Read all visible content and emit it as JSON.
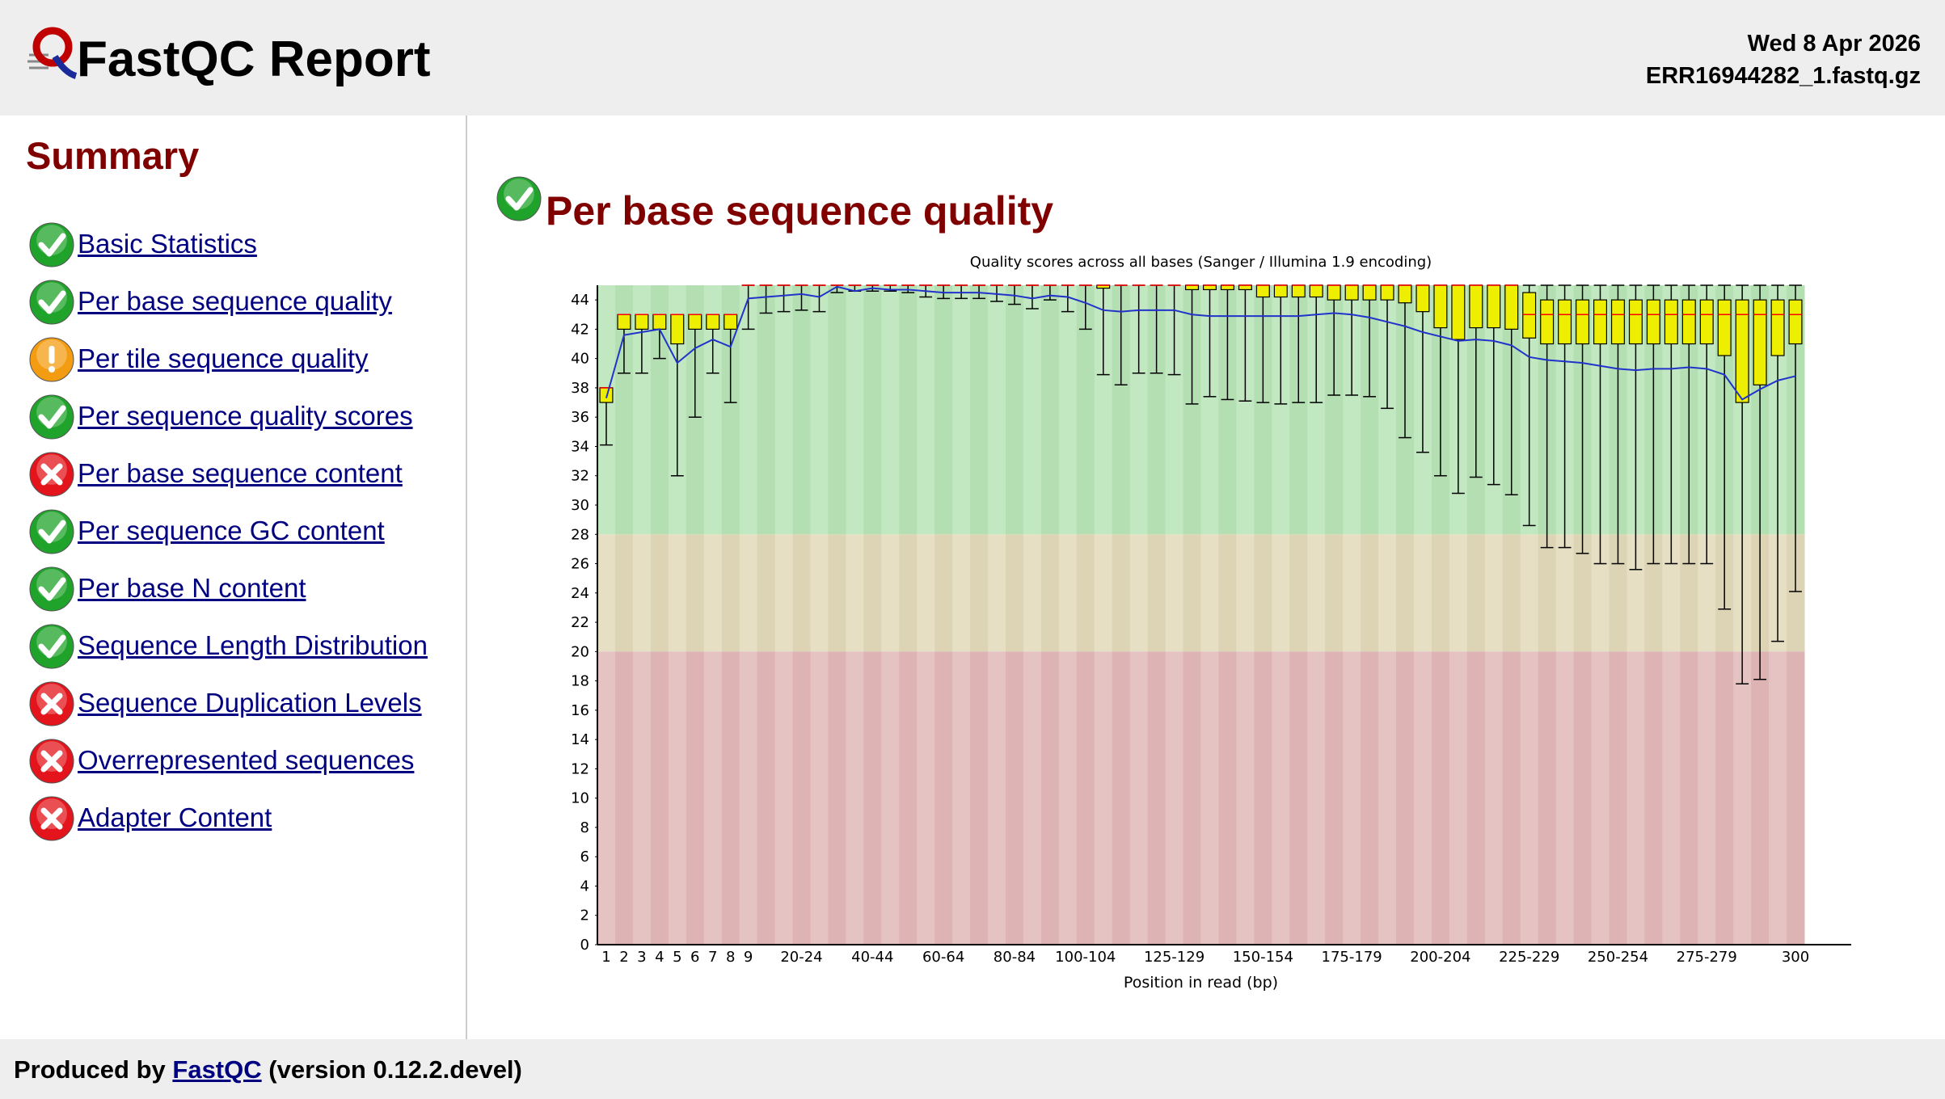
{
  "header": {
    "title": "FastQC Report",
    "date": "Wed 8 Apr 2026",
    "filename": "ERR16944282_1.fastq.gz"
  },
  "summary": {
    "title": "Summary",
    "modules": [
      {
        "name": "Basic Statistics",
        "status": "pass"
      },
      {
        "name": "Per base sequence quality",
        "status": "pass"
      },
      {
        "name": "Per tile sequence quality",
        "status": "warn"
      },
      {
        "name": "Per sequence quality scores",
        "status": "pass"
      },
      {
        "name": "Per base sequence content",
        "status": "fail"
      },
      {
        "name": "Per sequence GC content",
        "status": "pass"
      },
      {
        "name": "Per base N content",
        "status": "pass"
      },
      {
        "name": "Sequence Length Distribution",
        "status": "pass"
      },
      {
        "name": "Sequence Duplication Levels",
        "status": "fail"
      },
      {
        "name": "Overrepresented sequences",
        "status": "fail"
      },
      {
        "name": "Adapter Content",
        "status": "fail"
      }
    ]
  },
  "section": {
    "title": "Per base sequence quality",
    "status": "pass"
  },
  "footer": {
    "prefix": "Produced by",
    "link": "FastQC",
    "suffix": "(version 0.12.2.devel)"
  },
  "chart_data": {
    "type": "boxplot",
    "title": "Quality scores across all bases (Sanger / Illumina 1.9 encoding)",
    "x_label": "Position in read (bp)",
    "categories": [
      "1",
      "2",
      "3",
      "4",
      "5",
      "6",
      "7",
      "8",
      "9",
      null,
      null,
      "20-24",
      null,
      null,
      null,
      "40-44",
      null,
      null,
      null,
      "60-64",
      null,
      null,
      null,
      "80-84",
      null,
      null,
      null,
      "100-104",
      null,
      null,
      null,
      null,
      "125-129",
      null,
      null,
      null,
      null,
      "150-154",
      null,
      null,
      null,
      null,
      "175-179",
      null,
      null,
      null,
      null,
      "200-204",
      null,
      null,
      null,
      null,
      "225-229",
      null,
      null,
      null,
      null,
      "250-254",
      null,
      null,
      null,
      null,
      "275-279",
      null,
      null,
      null,
      null,
      "300"
    ],
    "lower_whisker": [
      34.1,
      39,
      39,
      40,
      32,
      36,
      39,
      37,
      42,
      43.1,
      43.2,
      43.3,
      43.2,
      44.5,
      44.6,
      44.6,
      44.6,
      44.5,
      44.2,
      44.1,
      44.1,
      44.1,
      43.9,
      43.7,
      43.4,
      44.0,
      43.2,
      42.0,
      38.9,
      38.2,
      39.0,
      39.0,
      38.9,
      36.9,
      37.4,
      37.2,
      37.1,
      37.0,
      36.9,
      37.0,
      37.0,
      37.5,
      37.5,
      37.4,
      36.6,
      34.6,
      33.6,
      32.0,
      30.8,
      31.9,
      31.4,
      30.7,
      28.6,
      27.1,
      27.1,
      26.7,
      26.0,
      26.0,
      25.6,
      26.0,
      26.0,
      26.0,
      26.0,
      22.9,
      17.8,
      18.1,
      20.7,
      24.1
    ],
    "q1": [
      37,
      42,
      42,
      42,
      41,
      42,
      42,
      42,
      45,
      45,
      45,
      45,
      45,
      45,
      45,
      45,
      45,
      45,
      45,
      45,
      45,
      45,
      45,
      45,
      45,
      45,
      45,
      45,
      44.8,
      45,
      45,
      45,
      45,
      44.7,
      44.7,
      44.7,
      44.7,
      44.2,
      44.2,
      44.2,
      44.2,
      44.0,
      44.0,
      44.0,
      44.0,
      43.8,
      43.2,
      42.1,
      41.3,
      42.1,
      42.1,
      42.0,
      41.4,
      41,
      41,
      41,
      41,
      41,
      41,
      41,
      41,
      41,
      41,
      40.2,
      37,
      38.2,
      40.2,
      41
    ],
    "median": [
      38,
      43,
      43,
      43,
      43,
      43,
      43,
      43,
      45,
      45,
      45,
      45,
      45,
      45,
      45,
      45,
      45,
      45,
      45,
      45,
      45,
      45,
      45,
      45,
      45,
      45,
      45,
      45,
      45,
      45,
      45,
      45,
      45,
      45,
      45,
      45,
      45,
      45,
      45,
      45,
      45,
      45,
      45,
      45,
      45,
      45,
      45,
      45,
      45,
      45,
      45,
      45,
      43,
      43,
      43,
      43,
      43,
      43,
      43,
      43,
      43,
      43,
      43,
      43,
      43,
      43,
      43,
      43
    ],
    "q3": [
      38,
      43,
      43,
      43,
      43,
      43,
      43,
      43,
      45,
      45,
      45,
      45,
      45,
      45,
      45,
      45,
      45,
      45,
      45,
      45,
      45,
      45,
      45,
      45,
      45,
      45,
      45,
      45,
      45,
      45,
      45,
      45,
      45,
      45,
      45,
      45,
      45,
      45,
      45,
      45,
      45,
      45,
      45,
      45,
      45,
      45,
      45,
      45,
      45,
      45,
      45,
      45,
      44.5,
      44,
      44,
      44,
      44,
      44,
      44,
      44,
      44,
      44,
      44,
      44,
      44,
      44,
      44,
      44
    ],
    "upper_whisker": [
      38,
      43,
      43,
      43,
      43,
      43,
      43,
      43,
      45,
      45,
      45,
      45,
      45,
      45,
      45,
      45,
      45,
      45,
      45,
      45,
      45,
      45,
      45,
      45,
      45,
      45,
      45,
      45,
      45,
      45,
      45,
      45,
      45,
      45,
      45,
      45,
      45,
      45,
      45,
      45,
      45,
      45,
      45,
      45,
      45,
      45,
      45,
      45,
      45,
      45,
      45,
      45,
      45,
      45,
      45,
      45,
      45,
      45,
      45,
      45,
      45,
      45,
      45,
      45,
      45,
      45,
      45,
      45
    ],
    "mean": [
      37.3,
      41.6,
      41.8,
      42.0,
      39.7,
      40.7,
      41.3,
      40.8,
      44.1,
      44.2,
      44.3,
      44.4,
      44.2,
      44.9,
      44.6,
      44.8,
      44.7,
      44.7,
      44.6,
      44.5,
      44.5,
      44.5,
      44.4,
      44.3,
      44.1,
      44.3,
      44.2,
      43.8,
      43.3,
      43.2,
      43.3,
      43.3,
      43.3,
      43.0,
      42.9,
      42.9,
      42.9,
      42.9,
      42.9,
      42.9,
      43.0,
      43.1,
      43.0,
      42.8,
      42.5,
      42.2,
      41.8,
      41.5,
      41.2,
      41.3,
      41.2,
      40.9,
      40.1,
      39.9,
      39.8,
      39.7,
      39.5,
      39.3,
      39.2,
      39.3,
      39.3,
      39.4,
      39.3,
      38.9,
      37.2,
      37.9,
      38.5,
      38.8
    ],
    "box_color": "#eeee00",
    "median_color": "#ff0000",
    "mean_color": "#2233cc",
    "bands": [
      {
        "from": 28,
        "to": 45,
        "colors": [
          "#c2e8c1",
          "#b3dfb2"
        ]
      },
      {
        "from": 20,
        "to": 28,
        "colors": [
          "#e6dfc4",
          "#ddd4b5"
        ]
      },
      {
        "from": 0,
        "to": 20,
        "colors": [
          "#e6c3c3",
          "#ddb3b3"
        ]
      }
    ],
    "ylim": [
      0,
      45
    ],
    "yticks": [
      0,
      2,
      4,
      6,
      8,
      10,
      12,
      14,
      16,
      18,
      20,
      22,
      24,
      26,
      28,
      30,
      32,
      34,
      36,
      38,
      40,
      42,
      44
    ],
    "grid": false
  }
}
